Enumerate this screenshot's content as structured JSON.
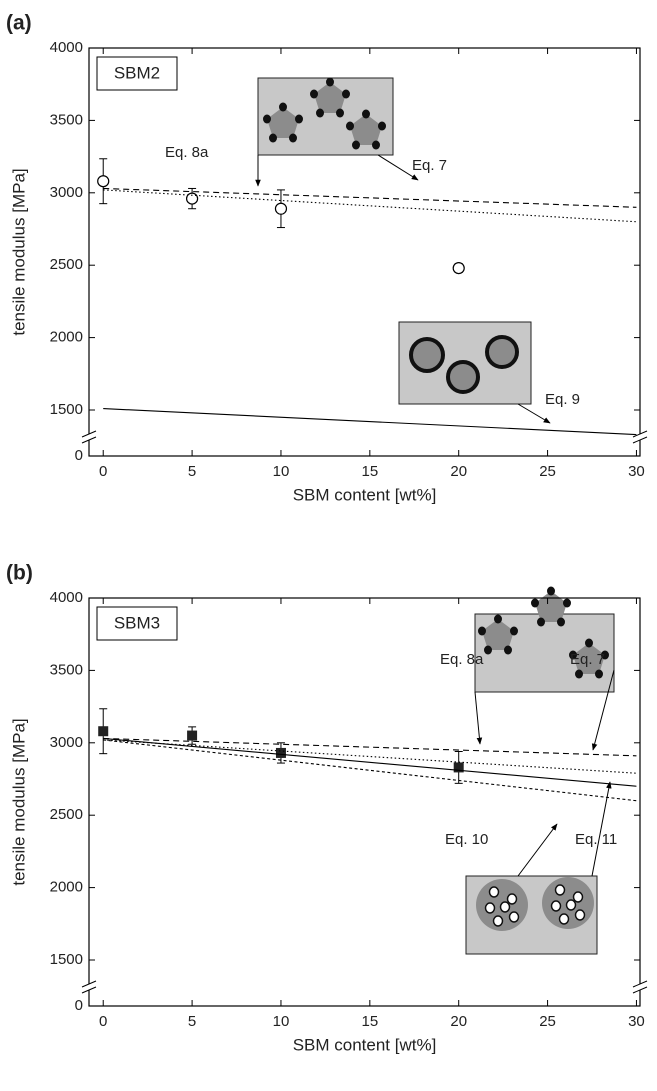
{
  "chart_data": [
    {
      "type": "scatter",
      "panel_label": "(a)",
      "sample_label": "SBM2",
      "x_label": "SBM content [wt%]",
      "y_label": "tensile modulus [MPa]",
      "xlim": [
        -0.8,
        30.2
      ],
      "xticks": [
        0,
        5,
        10,
        15,
        20,
        25,
        30
      ],
      "ylim": [
        0,
        4000
      ],
      "y_break": [
        0,
        1500
      ],
      "yticks": [
        0,
        1500,
        2000,
        2500,
        3000,
        3500,
        4000
      ],
      "series": [
        {
          "marker": "circle-open",
          "color": "#000000",
          "x": [
            0,
            5,
            10,
            20
          ],
          "values": [
            3080,
            2960,
            2890,
            2480
          ],
          "errors": [
            155,
            70,
            130,
            30
          ]
        },
        {
          "name": "Eq. 7",
          "linestyle": "dashed",
          "color": "#000000",
          "x": [
            0,
            30
          ],
          "values": [
            3030,
            2900
          ]
        },
        {
          "name": "Eq. 8a",
          "linestyle": "dotted",
          "color": "#000000",
          "x": [
            0,
            30
          ],
          "values": [
            3020,
            2800
          ]
        },
        {
          "name": "Eq. 9",
          "linestyle": "solid",
          "color": "#000000",
          "x": [
            0,
            30
          ],
          "values": [
            1510,
            1330
          ]
        }
      ]
    },
    {
      "type": "scatter",
      "panel_label": "(b)",
      "sample_label": "SBM3",
      "x_label": "SBM content [wt%]",
      "y_label": "tensile modulus [MPa]",
      "xlim": [
        -0.8,
        30.2
      ],
      "xticks": [
        0,
        5,
        10,
        15,
        20,
        25,
        30
      ],
      "ylim": [
        0,
        4000
      ],
      "y_break": [
        0,
        1500
      ],
      "yticks": [
        0,
        1500,
        2000,
        2500,
        3000,
        3500,
        4000
      ],
      "series": [
        {
          "marker": "square-filled",
          "color": "#222222",
          "x": [
            0,
            5,
            10,
            20
          ],
          "values": [
            3080,
            3050,
            2930,
            2830
          ],
          "errors": [
            155,
            60,
            70,
            110
          ]
        },
        {
          "name": "Eq. 7",
          "linestyle": "dashed",
          "color": "#000000",
          "x": [
            0,
            30
          ],
          "values": [
            3030,
            2910
          ]
        },
        {
          "name": "Eq. 8a",
          "linestyle": "dotted",
          "color": "#000000",
          "x": [
            0,
            30
          ],
          "values": [
            3020,
            2790
          ]
        },
        {
          "name": "Eq. 10",
          "linestyle": "short-dashed",
          "color": "#000000",
          "x": [
            0,
            30
          ],
          "values": [
            3020,
            2600
          ]
        },
        {
          "name": "Eq. 11",
          "linestyle": "solid",
          "color": "#000000",
          "x": [
            0,
            30
          ],
          "values": [
            3030,
            2700
          ]
        }
      ]
    }
  ]
}
